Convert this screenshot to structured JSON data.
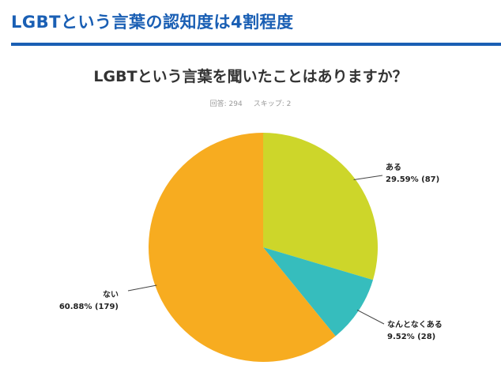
{
  "heading": "LGBTという言葉の認知度は4割程度",
  "colors": {
    "heading": "#1a5fb4"
  },
  "survey": {
    "answered": "回答: 294",
    "skipped": "スキップ: 2"
  },
  "chart_data": {
    "type": "pie",
    "title": "LGBTという言葉を聞いたことはありますか？",
    "slices": [
      {
        "name": "ある",
        "percent": 29.59,
        "count": 87,
        "label": "29.59% (87)",
        "color": "#cdd62a"
      },
      {
        "name": "なんとなくある",
        "percent": 9.52,
        "count": 28,
        "label": "9.52% (28)",
        "color": "#36bdbd"
      },
      {
        "name": "ない",
        "percent": 60.88,
        "count": 179,
        "label": "60.88% (179)",
        "color": "#f7ac20"
      }
    ]
  }
}
